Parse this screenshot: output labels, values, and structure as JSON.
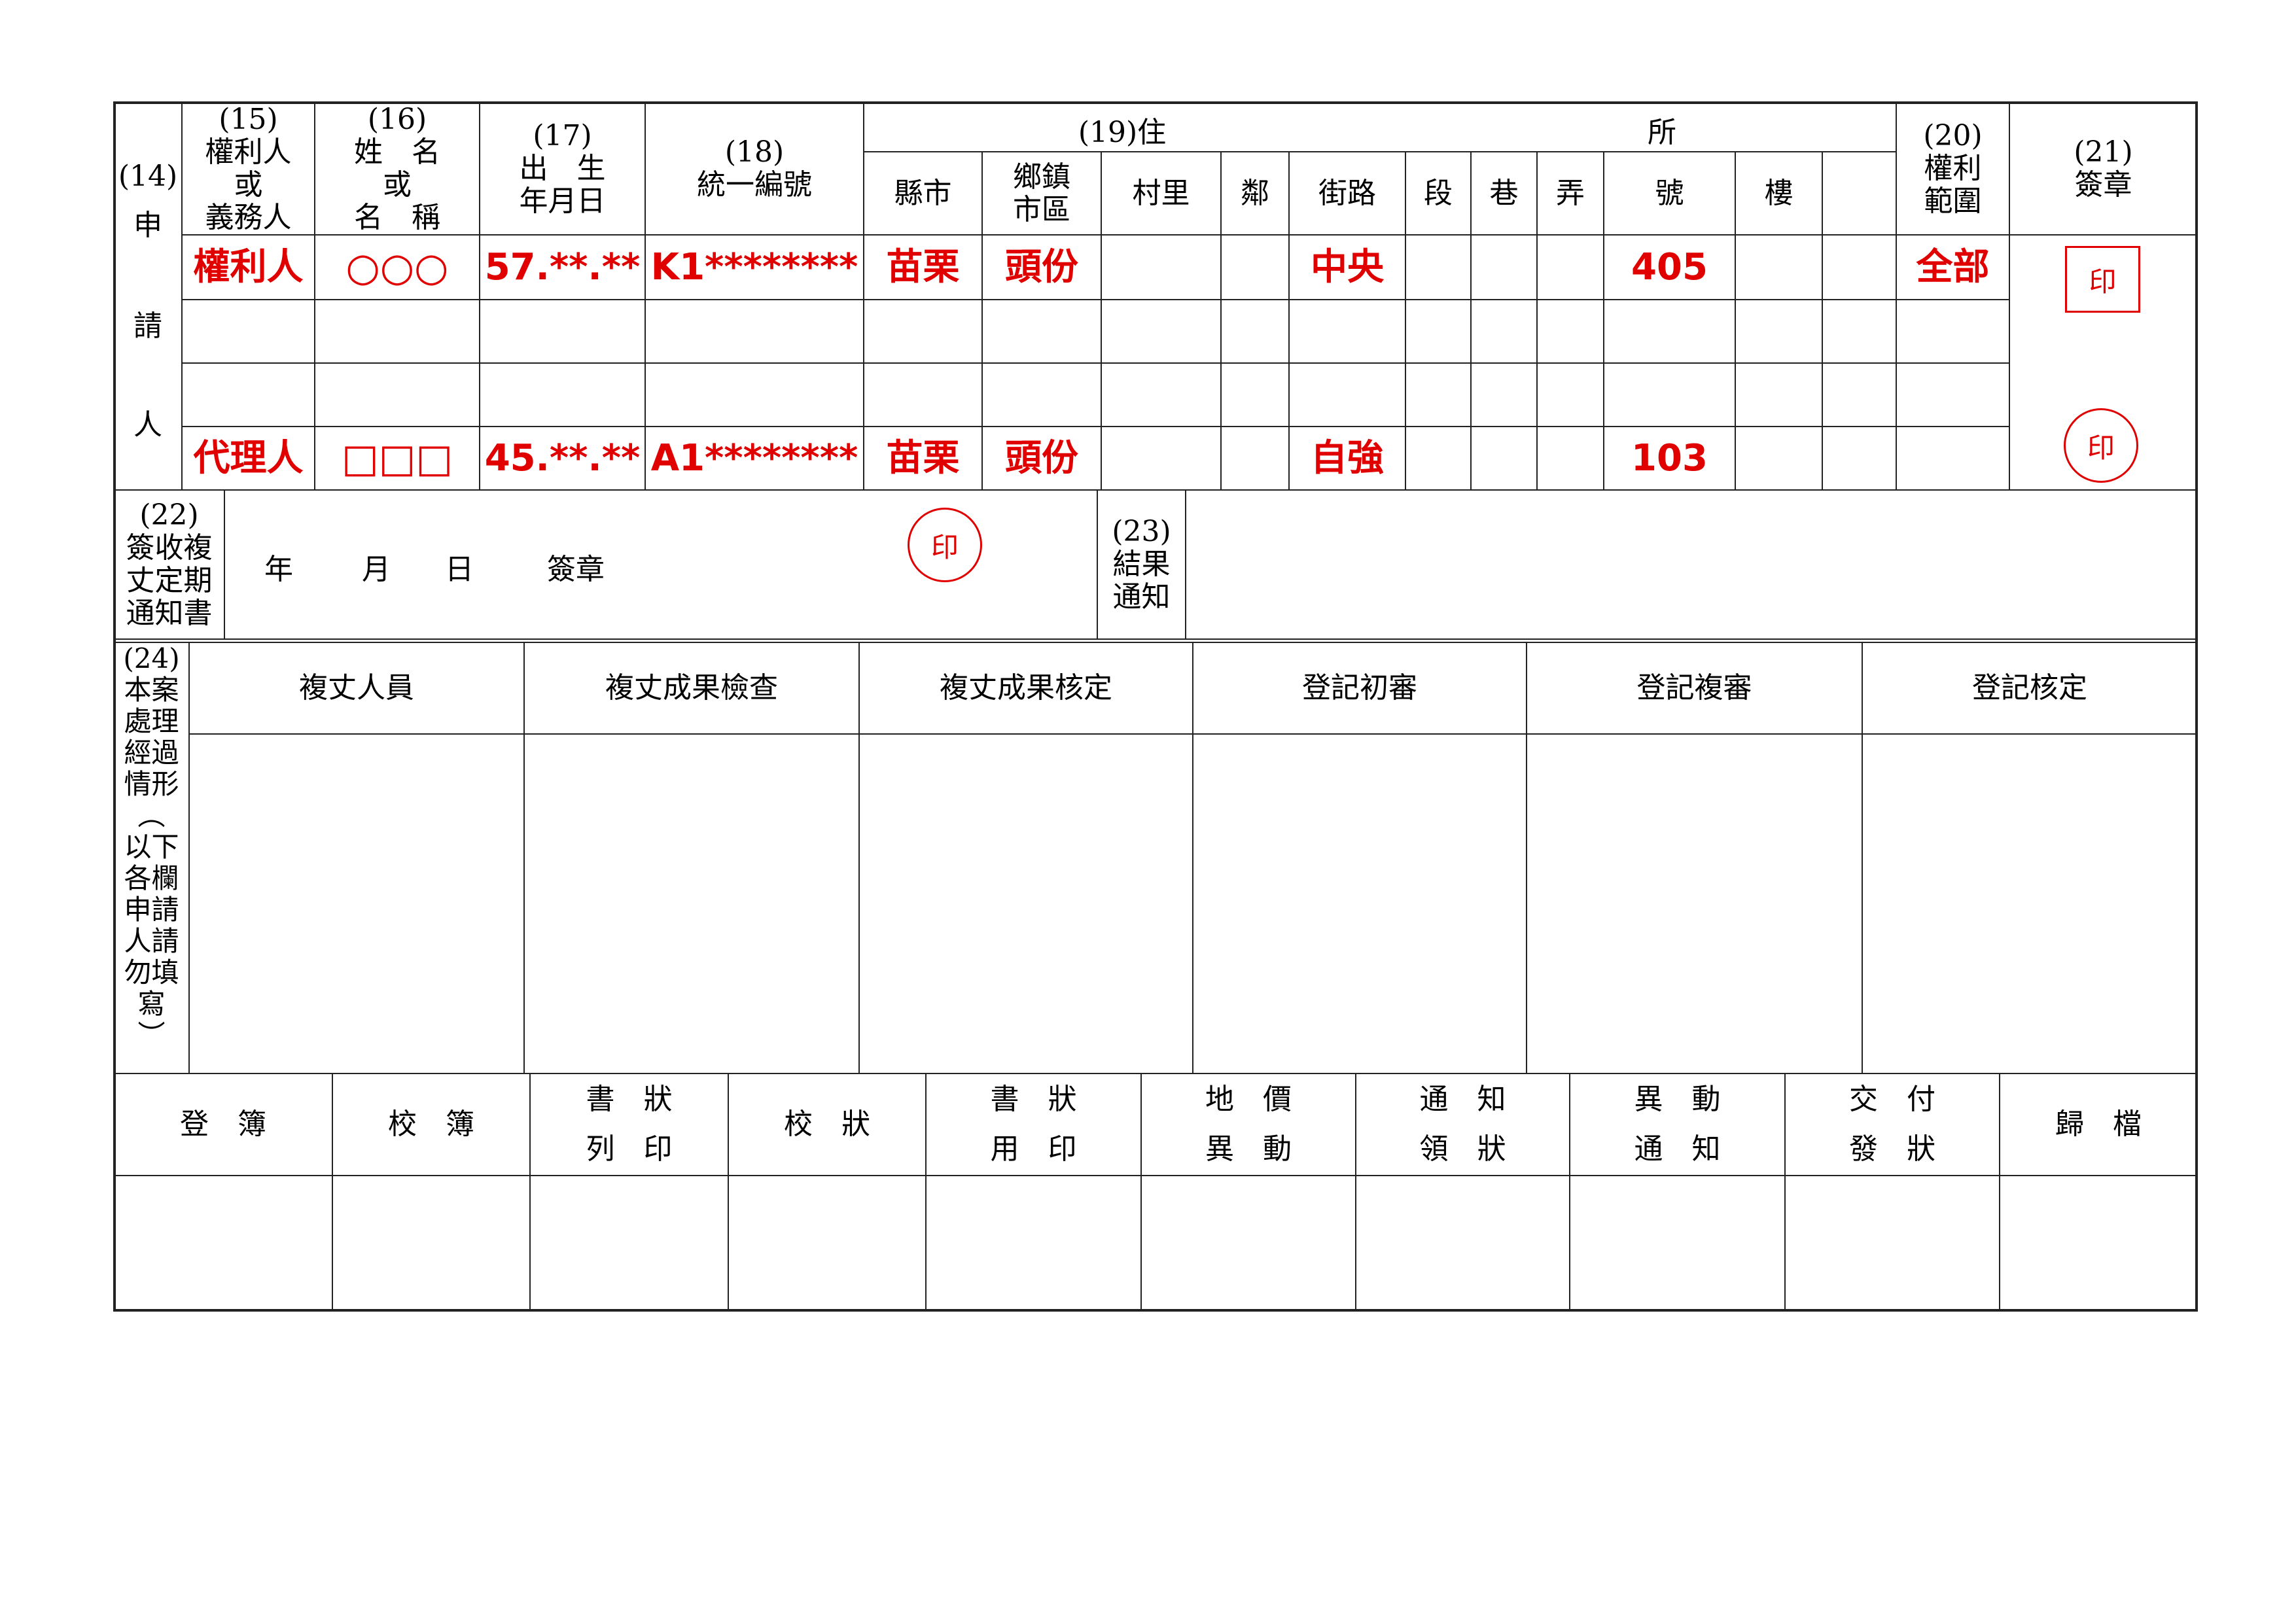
{
  "applicant": {
    "label_no": "(14)",
    "label_chars": [
      "申",
      "請",
      "人"
    ],
    "headers": {
      "h15": "(15)\n權利人\n或\n義務人",
      "h16": "(16)\n姓　名\n或\n名　稱",
      "h17": "(17)\n出　生\n年月日",
      "h18": "(18)\n統一編號",
      "h19_left": "(19)住",
      "h19_right": "所",
      "address_cols": [
        "縣市",
        "鄉鎮\n市區",
        "村里",
        "鄰",
        "街路",
        "段",
        "巷",
        "弄",
        "號",
        "樓",
        ""
      ],
      "h20": "(20)\n權利\n範圍",
      "h21": "(21)\n簽章"
    },
    "rows": [
      [
        "權利人",
        "○○○",
        "57.**.**",
        "K1********",
        "苗栗",
        "頭份",
        "",
        "",
        "中央",
        "",
        "",
        "",
        "405",
        "",
        "",
        "全部"
      ],
      [
        "",
        "",
        "",
        "",
        "",
        "",
        "",
        "",
        "",
        "",
        "",
        "",
        "",
        "",
        "",
        ""
      ],
      [
        "",
        "",
        "",
        "",
        "",
        "",
        "",
        "",
        "",
        "",
        "",
        "",
        "",
        "",
        "",
        ""
      ],
      [
        "代理人",
        "□□□",
        "45.**.**",
        "A1********",
        "苗栗",
        "頭份",
        "",
        "",
        "自強",
        "",
        "",
        "",
        "103",
        "",
        "",
        ""
      ]
    ],
    "stamps": [
      "印",
      "印"
    ]
  },
  "survey_notice": {
    "label": "(22)\n簽收複\n丈定期\n通知書",
    "year": "年",
    "month": "月",
    "day": "日",
    "signature": "簽章",
    "stamp": "印",
    "result_label": "(23)\n結果\n通知"
  },
  "processing": {
    "label": "(24)\n本案\n處理\n經過\n情形\n︵\n以下\n各欄\n申請\n人請\n勿填\n寫\n︶",
    "columns": [
      "複丈人員",
      "複丈成果檢查",
      "複丈成果核定",
      "登記初審",
      "登記複審",
      "登記核定"
    ]
  },
  "registry": {
    "columns": [
      "登　簿",
      "校　簿",
      "書　狀\n列　印",
      "校　狀",
      "書　狀\n用　印",
      "地　價\n異　動",
      "通　知\n領　狀",
      "異　動\n通　知",
      "交　付\n發　狀",
      "歸　檔"
    ]
  },
  "colors": {
    "ink": "#000000",
    "accent_red": "#e00000"
  }
}
